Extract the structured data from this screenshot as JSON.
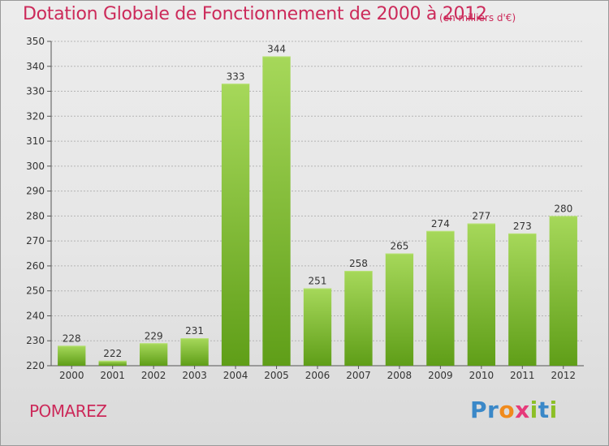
{
  "header": {
    "title": "Dotation Globale de Fonctionnement de 2000 à 2012",
    "subtitle": "(en milliers d'€)"
  },
  "footer": {
    "commune": "POMAREZ",
    "logo_text": "Proxiti"
  },
  "colors": {
    "title": "#cc2a5a",
    "bar_light": "#a6d85a",
    "bar_dark": "#5f9e18",
    "grid": "#b4b4b4"
  },
  "chart_data": {
    "type": "bar",
    "title": "Dotation Globale de Fonctionnement de 2000 à 2012",
    "subtitle": "(en milliers d'€)",
    "xlabel": "",
    "ylabel": "",
    "categories": [
      "2000",
      "2001",
      "2002",
      "2003",
      "2004",
      "2005",
      "2006",
      "2007",
      "2008",
      "2009",
      "2010",
      "2011",
      "2012"
    ],
    "values": [
      228,
      222,
      229,
      231,
      333,
      344,
      251,
      258,
      265,
      274,
      277,
      273,
      280
    ],
    "ylim": [
      220,
      350
    ],
    "yticks": [
      220,
      230,
      240,
      250,
      260,
      270,
      280,
      290,
      300,
      310,
      320,
      330,
      340,
      350
    ],
    "grid": true,
    "legend": "none"
  }
}
